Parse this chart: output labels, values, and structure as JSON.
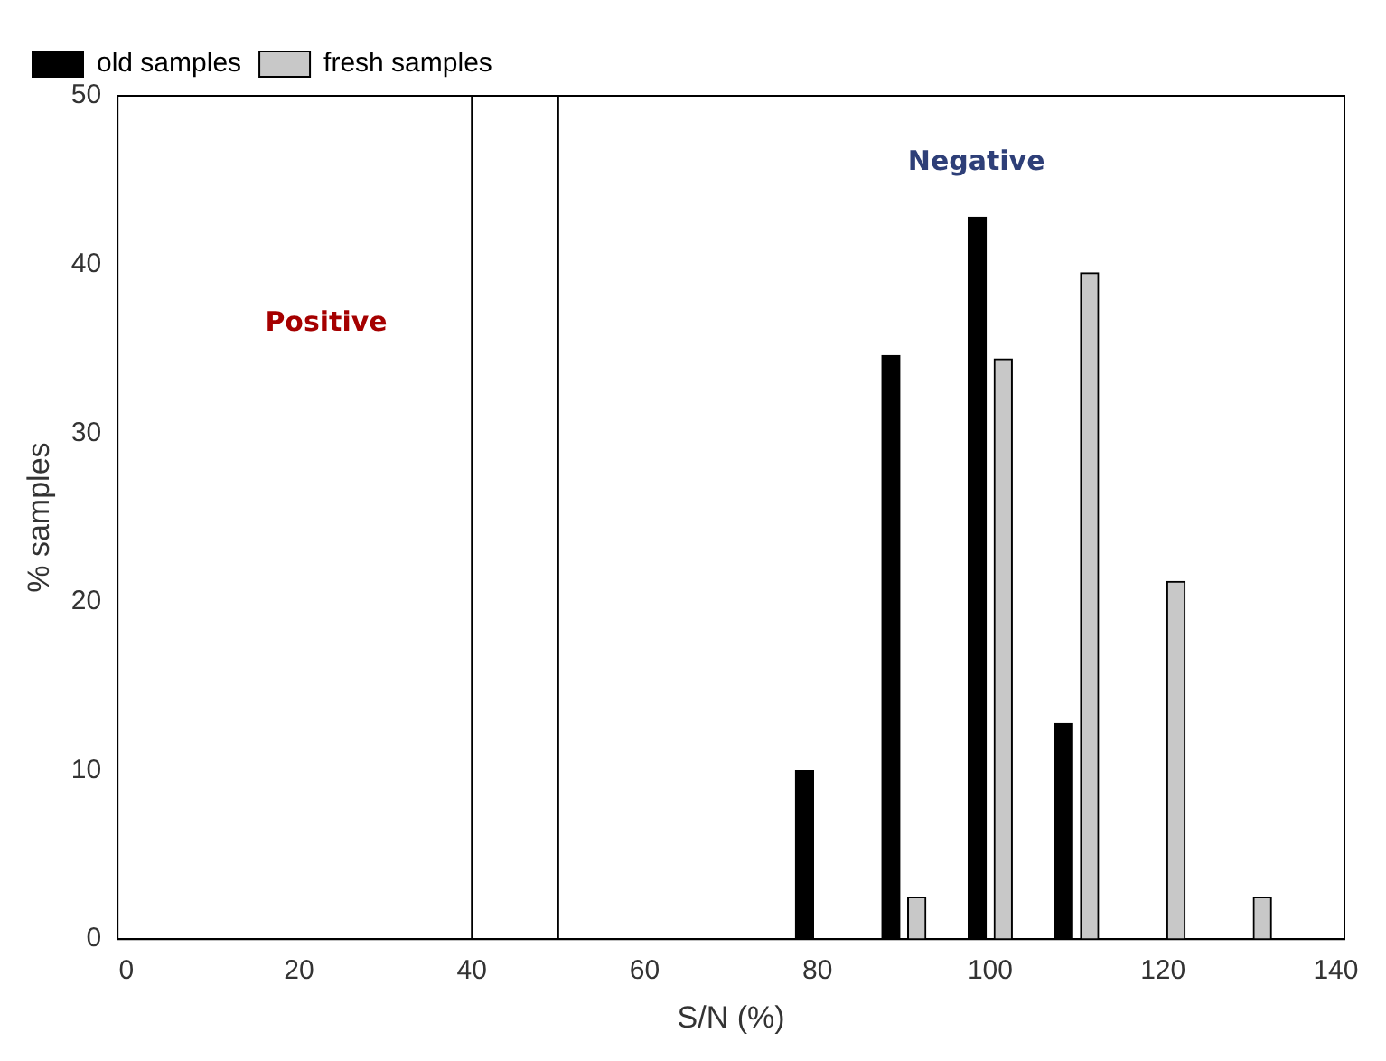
{
  "chart_data": {
    "type": "bar",
    "xlabel": "S/N (%)",
    "ylabel": "% samples",
    "series": [
      {
        "name": "old samples",
        "color": "#000000",
        "x": [
          78.5,
          88.5,
          98.5,
          108.5
        ],
        "values": [
          10,
          34.6,
          42.8,
          12.8
        ]
      },
      {
        "name": "fresh samples",
        "color": "#c8c8c8",
        "x": [
          91.5,
          101.5,
          111.5,
          121.5,
          131.5
        ],
        "values": [
          2.5,
          34.4,
          39.5,
          21.2,
          2.5
        ]
      }
    ],
    "xlim": [
      -1,
      141
    ],
    "xticks": [
      0,
      20,
      40,
      60,
      80,
      100,
      120,
      140
    ],
    "ylim": [
      0,
      50
    ],
    "yticks": [
      0,
      10,
      20,
      30,
      40,
      50
    ],
    "ref_lines": [
      {
        "axis": "x",
        "value": 40,
        "color": "#000000"
      },
      {
        "axis": "x",
        "value": 50,
        "color": "#000000"
      }
    ],
    "annotations": [
      "Positive",
      "Negative"
    ],
    "grid": false,
    "legend": "top left"
  }
}
